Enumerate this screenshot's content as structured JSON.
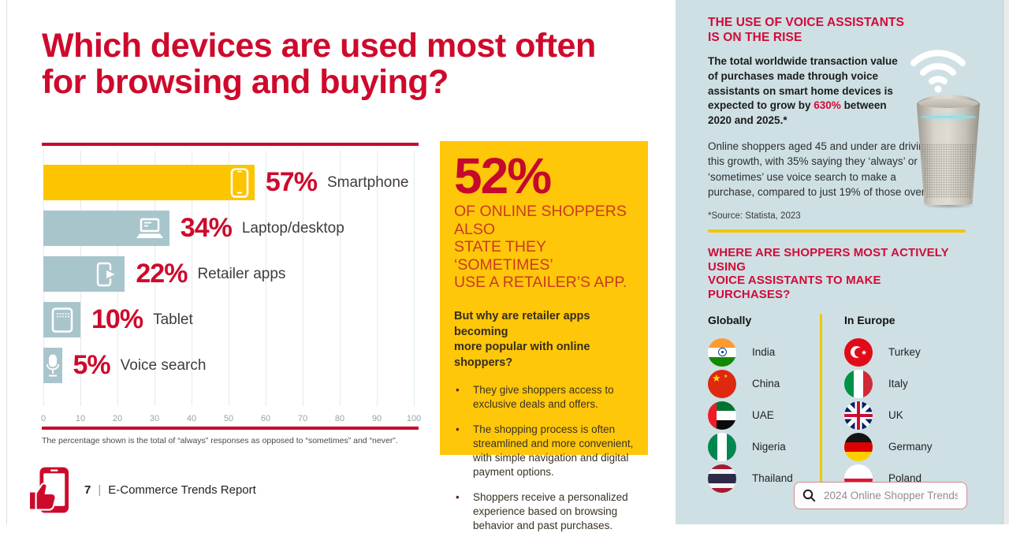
{
  "page": {
    "title_line1": "Which devices are used most often",
    "title_line2": "for browsing and buying?",
    "footnote": "The percentage shown is the total of “always” responses as opposed to “sometimes” and “never”.",
    "footer": {
      "page_number": "7",
      "separator": "|",
      "report_name": "E-Commerce Trends Report"
    }
  },
  "chart_data": {
    "type": "bar",
    "orientation": "horizontal",
    "categories": [
      "Smartphone",
      "Laptop/desktop",
      "Retailer apps",
      "Tablet",
      "Voice search"
    ],
    "values": [
      57,
      34,
      22,
      10,
      5
    ],
    "value_labels": [
      "57%",
      "34%",
      "22%",
      "10%",
      "5%"
    ],
    "bar_colors": [
      "#FDC400",
      "#A9C5CC",
      "#A9C5CC",
      "#A9C5CC",
      "#A9C5CC"
    ],
    "icons": [
      "smartphone-icon",
      "laptop-icon",
      "retailer-app-icon",
      "tablet-icon",
      "microphone-icon"
    ],
    "x_ticks": [
      0,
      10,
      20,
      30,
      40,
      50,
      60,
      70,
      80,
      90,
      100
    ],
    "xlim": [
      0,
      100
    ],
    "grid": true,
    "title": "",
    "xlabel": "",
    "ylabel": ""
  },
  "highlight_box": {
    "background_color": "#FFC709",
    "stat_value": "52%",
    "stat_caption_line1": "OF ONLINE SHOPPERS ALSO",
    "stat_caption_line2": "STATE THEY ‘SOMETIMES’",
    "stat_caption_line3": "USE A RETAILER’S APP.",
    "question_line1": "But why are retailer apps becoming",
    "question_line2": "more popular with online shoppers?",
    "bullets": [
      "They give shoppers access to exclusive deals and offers.",
      "The shopping process is often streamlined and more convenient, with simple navigation and digital payment options.",
      "Shoppers receive a personalized experience based on browsing behavior and past purchases."
    ]
  },
  "sidebar": {
    "background_color": "#CEE0E4",
    "voice_assistants": {
      "heading_line1": "THE USE OF VOICE ASSISTANTS",
      "heading_line2": "IS ON THE RISE",
      "lead_before": "The total worldwide transaction value of purchases made through voice assistants on smart home devices is expected to grow by ",
      "lead_highlight": "630%",
      "lead_after": " between 2020 and 2025.*",
      "body": "Online shoppers aged 45 and under are driving this growth, with 35% saying they ‘always’ or ‘sometimes’ use voice search to make a purchase, compared to just 19% of those over 45.",
      "source": "*Source: Statista, 2023"
    },
    "purchases_section": {
      "heading_line1": "WHERE ARE SHOPPERS MOST ACTIVELY USING",
      "heading_line2": "VOICE ASSISTANTS TO MAKE PURCHASES?",
      "columns": [
        {
          "header": "Globally",
          "countries": [
            "India",
            "China",
            "UAE",
            "Nigeria",
            "Thailand"
          ]
        },
        {
          "header": "In Europe",
          "countries": [
            "Turkey",
            "Italy",
            "UK",
            "Germany",
            "Poland"
          ]
        }
      ]
    },
    "search": {
      "placeholder": "2024 Online Shopper Trends"
    }
  },
  "colors": {
    "brand_red": "#CE0A2C",
    "caps_red_on_yellow": "#C93B22",
    "bar_yellow": "#FDC400",
    "bar_blue": "#A9C5CC",
    "box_yellow": "#FFC709",
    "sidebar_bg": "#CEE0E4",
    "divider_yellow": "#F2C50A"
  }
}
